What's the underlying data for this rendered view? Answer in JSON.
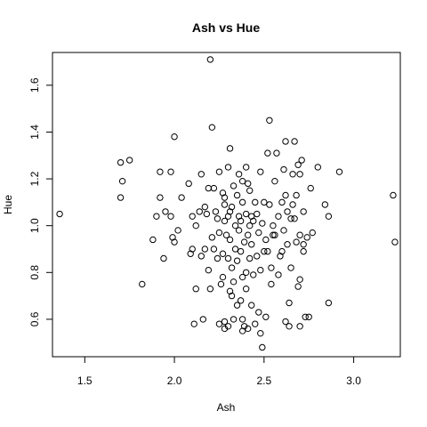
{
  "chart_data": {
    "type": "scatter",
    "title": "Ash vs Hue",
    "xlabel": "Ash",
    "ylabel": "Hue",
    "xlim": [
      1.32,
      3.26
    ],
    "ylim": [
      0.44,
      1.74
    ],
    "xticks": [
      1.5,
      2.0,
      2.5,
      3.0
    ],
    "yticks": [
      0.6,
      0.8,
      1.0,
      1.2,
      1.4,
      1.6
    ],
    "xtick_labels": [
      "1.5",
      "2.0",
      "2.5",
      "3.0"
    ],
    "ytick_labels": [
      "0.6",
      "0.8",
      "1.0",
      "1.2",
      "1.4",
      "1.6"
    ],
    "grid": false,
    "legend": "none",
    "marker": "open-circle",
    "points": [
      [
        1.36,
        1.05
      ],
      [
        1.7,
        1.27
      ],
      [
        1.71,
        1.19
      ],
      [
        1.7,
        1.12
      ],
      [
        1.75,
        1.28
      ],
      [
        1.82,
        0.75
      ],
      [
        1.88,
        0.94
      ],
      [
        1.9,
        1.04
      ],
      [
        1.92,
        1.23
      ],
      [
        1.92,
        1.12
      ],
      [
        1.94,
        0.86
      ],
      [
        1.95,
        1.06
      ],
      [
        1.98,
        1.04
      ],
      [
        1.98,
        1.23
      ],
      [
        1.99,
        0.95
      ],
      [
        2.0,
        0.93
      ],
      [
        2.0,
        1.38
      ],
      [
        2.02,
        0.98
      ],
      [
        2.04,
        1.12
      ],
      [
        2.08,
        1.18
      ],
      [
        2.09,
        0.88
      ],
      [
        2.1,
        0.9
      ],
      [
        2.1,
        1.04
      ],
      [
        2.11,
        0.58
      ],
      [
        2.12,
        0.73
      ],
      [
        2.12,
        1.0
      ],
      [
        2.14,
        1.06
      ],
      [
        2.15,
        1.22
      ],
      [
        2.15,
        0.87
      ],
      [
        2.16,
        0.6
      ],
      [
        2.17,
        0.9
      ],
      [
        2.17,
        1.08
      ],
      [
        2.18,
        1.05
      ],
      [
        2.19,
        0.81
      ],
      [
        2.19,
        1.16
      ],
      [
        2.2,
        1.71
      ],
      [
        2.2,
        0.73
      ],
      [
        2.21,
        1.42
      ],
      [
        2.21,
        0.95
      ],
      [
        2.22,
        1.16
      ],
      [
        2.22,
        0.9
      ],
      [
        2.23,
        1.06
      ],
      [
        2.24,
        0.86
      ],
      [
        2.24,
        1.03
      ],
      [
        2.25,
        0.58
      ],
      [
        2.25,
        0.97
      ],
      [
        2.25,
        1.23
      ],
      [
        2.26,
        0.75
      ],
      [
        2.27,
        1.14
      ],
      [
        2.27,
        0.88
      ],
      [
        2.27,
        0.78
      ],
      [
        2.28,
        1.12
      ],
      [
        2.28,
        0.56
      ],
      [
        2.28,
        1.09
      ],
      [
        2.28,
        0.59
      ],
      [
        2.28,
        1.02
      ],
      [
        2.29,
        0.96
      ],
      [
        2.3,
        1.25
      ],
      [
        2.3,
        0.57
      ],
      [
        2.3,
        0.86
      ],
      [
        2.3,
        1.04
      ],
      [
        2.31,
        0.94
      ],
      [
        2.31,
        0.72
      ],
      [
        2.31,
        1.33
      ],
      [
        2.31,
        1.06
      ],
      [
        2.32,
        0.7
      ],
      [
        2.32,
        1.08
      ],
      [
        2.32,
        0.82
      ],
      [
        2.33,
        0.76
      ],
      [
        2.33,
        1.17
      ],
      [
        2.33,
        0.6
      ],
      [
        2.34,
        0.9
      ],
      [
        2.34,
        1.0
      ],
      [
        2.35,
        0.85
      ],
      [
        2.35,
        1.13
      ],
      [
        2.35,
        0.66
      ],
      [
        2.36,
        1.04
      ],
      [
        2.36,
        0.98
      ],
      [
        2.36,
        1.22
      ],
      [
        2.37,
        0.68
      ],
      [
        2.37,
        0.89
      ],
      [
        2.37,
        1.02
      ],
      [
        2.38,
        0.78
      ],
      [
        2.38,
        0.55
      ],
      [
        2.38,
        1.19
      ],
      [
        2.38,
        0.6
      ],
      [
        2.38,
        1.1
      ],
      [
        2.39,
        0.57
      ],
      [
        2.39,
        0.93
      ],
      [
        2.4,
        1.25
      ],
      [
        2.4,
        0.8
      ],
      [
        2.4,
        1.05
      ],
      [
        2.4,
        0.73
      ],
      [
        2.41,
        0.96
      ],
      [
        2.41,
        0.56
      ],
      [
        2.41,
        1.18
      ],
      [
        2.42,
        1.0
      ],
      [
        2.42,
        0.86
      ],
      [
        2.42,
        1.15
      ],
      [
        2.43,
        0.92
      ],
      [
        2.43,
        1.04
      ],
      [
        2.43,
        0.66
      ],
      [
        2.44,
        0.79
      ],
      [
        2.44,
        1.02
      ],
      [
        2.45,
        1.1
      ],
      [
        2.45,
        0.58
      ],
      [
        2.46,
        0.87
      ],
      [
        2.46,
        1.05
      ],
      [
        2.47,
        0.63
      ],
      [
        2.47,
        0.97
      ],
      [
        2.48,
        1.23
      ],
      [
        2.48,
        0.81
      ],
      [
        2.48,
        0.54
      ],
      [
        2.49,
        0.48
      ],
      [
        2.49,
        1.01
      ],
      [
        2.5,
        0.89
      ],
      [
        2.5,
        1.1
      ],
      [
        2.51,
        0.94
      ],
      [
        2.51,
        0.61
      ],
      [
        2.52,
        1.31
      ],
      [
        2.52,
        0.89
      ],
      [
        2.53,
        1.45
      ],
      [
        2.53,
        1.09
      ],
      [
        2.54,
        0.82
      ],
      [
        2.54,
        0.75
      ],
      [
        2.55,
        1.0
      ],
      [
        2.55,
        0.96
      ],
      [
        2.56,
        1.19
      ],
      [
        2.56,
        0.96
      ],
      [
        2.57,
        1.31
      ],
      [
        2.58,
        0.79
      ],
      [
        2.58,
        1.04
      ],
      [
        2.59,
        0.87
      ],
      [
        2.6,
        0.89
      ],
      [
        2.6,
        1.1
      ],
      [
        2.61,
        1.24
      ],
      [
        2.61,
        0.98
      ],
      [
        2.62,
        1.13
      ],
      [
        2.62,
        0.59
      ],
      [
        2.62,
        1.36
      ],
      [
        2.63,
        1.06
      ],
      [
        2.63,
        0.92
      ],
      [
        2.64,
        0.67
      ],
      [
        2.64,
        0.57
      ],
      [
        2.65,
        0.82
      ],
      [
        2.65,
        1.03
      ],
      [
        2.66,
        1.22
      ],
      [
        2.66,
        1.09
      ],
      [
        2.67,
        1.36
      ],
      [
        2.67,
        1.03
      ],
      [
        2.68,
        1.13
      ],
      [
        2.68,
        0.93
      ],
      [
        2.69,
        0.74
      ],
      [
        2.69,
        1.26
      ],
      [
        2.7,
        1.22
      ],
      [
        2.7,
        0.96
      ],
      [
        2.7,
        0.77
      ],
      [
        2.7,
        0.57
      ],
      [
        2.71,
        1.28
      ],
      [
        2.72,
        1.06
      ],
      [
        2.72,
        0.89
      ],
      [
        2.72,
        0.92
      ],
      [
        2.73,
        0.61
      ],
      [
        2.74,
        0.95
      ],
      [
        2.75,
        0.61
      ],
      [
        2.76,
        1.16
      ],
      [
        2.77,
        0.97
      ],
      [
        2.8,
        1.25
      ],
      [
        2.84,
        1.09
      ],
      [
        2.86,
        1.04
      ],
      [
        2.86,
        0.67
      ],
      [
        2.92,
        1.23
      ],
      [
        3.22,
        1.13
      ],
      [
        3.23,
        0.93
      ]
    ]
  }
}
